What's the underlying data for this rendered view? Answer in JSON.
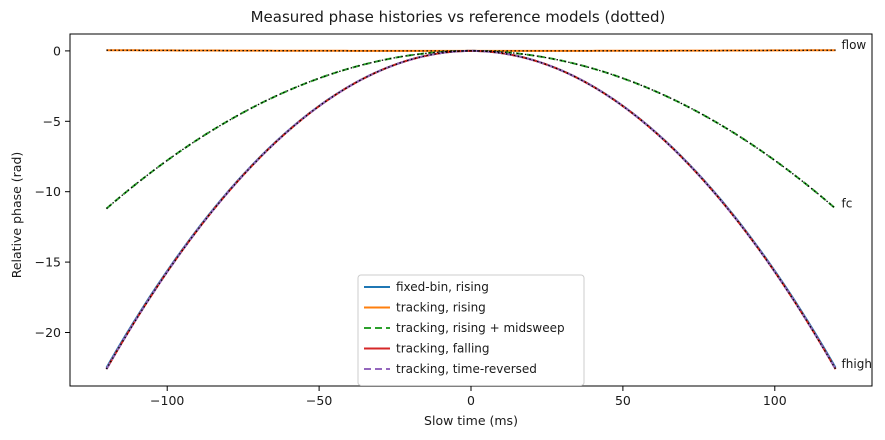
{
  "chart_data": {
    "type": "line",
    "title": "Measured phase histories vs reference models (dotted)",
    "xlabel": "Slow time (ms)",
    "ylabel": "Relative phase (rad)",
    "xlim": [
      -132,
      132
    ],
    "ylim": [
      -23.8,
      1.2
    ],
    "xticks": [
      -100,
      -50,
      0,
      50,
      100
    ],
    "yticks": [
      0,
      -5,
      -10,
      -15,
      -20
    ],
    "x_range": [
      -120,
      120
    ],
    "reference_label": "dotted",
    "curve_labels": [
      {
        "text": "flow",
        "x": 120,
        "y": 0.05
      },
      {
        "text": "fc",
        "x": 120,
        "y": -11.2
      },
      {
        "text": "fhigh",
        "x": 120,
        "y": -22.6
      }
    ],
    "series": [
      {
        "name": "fixed-bin, rising",
        "color": "#1f77b4",
        "style": "solid",
        "peak": 0,
        "edge_value": -22.5
      },
      {
        "name": "tracking, rising",
        "color": "#ff7f0e",
        "style": "solid",
        "peak": 0,
        "edge_value": 0.05
      },
      {
        "name": "tracking, rising + midsweep",
        "color": "#2ca02c",
        "style": "dashed",
        "peak": 0,
        "edge_value": -11.2
      },
      {
        "name": "tracking, falling",
        "color": "#d62728",
        "style": "solid",
        "peak": 0,
        "edge_value": -22.6
      },
      {
        "name": "tracking, time-reversed",
        "color": "#9467bd",
        "style": "dashed",
        "peak": 0,
        "edge_value": -22.6
      }
    ],
    "reference_models": [
      {
        "edge_value": 0.05,
        "color": "#000000"
      },
      {
        "edge_value": -11.2,
        "color": "#000000"
      },
      {
        "edge_value": -22.6,
        "color": "#000000"
      }
    ],
    "legend": {
      "position": "bottom-center"
    },
    "grid": false
  }
}
